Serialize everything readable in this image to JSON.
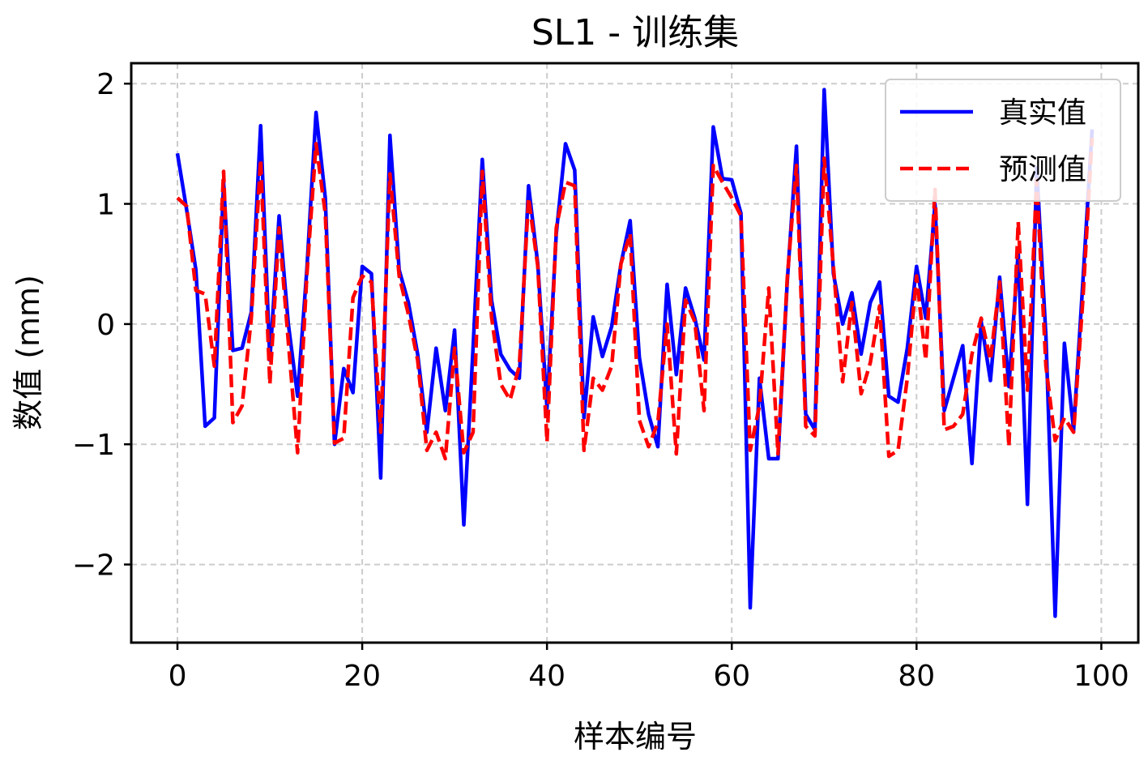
{
  "chart_data": {
    "type": "line",
    "title": "SL1 - 训练集",
    "xlabel": "样本编号",
    "ylabel": "数值 (mm)",
    "xlim": [
      -5,
      104
    ],
    "ylim": [
      -2.65,
      2.17
    ],
    "xticks": [
      0,
      20,
      40,
      60,
      80,
      100
    ],
    "xtick_labels": [
      "0",
      "20",
      "40",
      "60",
      "80",
      "100"
    ],
    "yticks": [
      -2,
      -1,
      0,
      1,
      2
    ],
    "ytick_labels": [
      "−2",
      "−1",
      "0",
      "1",
      "2"
    ],
    "grid": true,
    "legend_position": "top-right",
    "series": [
      {
        "name": "真实值",
        "color": "#0000ff",
        "style": "solid",
        "x": [
          0,
          1,
          2,
          3,
          4,
          5,
          6,
          7,
          8,
          9,
          10,
          11,
          12,
          13,
          14,
          15,
          16,
          17,
          18,
          19,
          20,
          21,
          22,
          23,
          24,
          25,
          26,
          27,
          28,
          29,
          30,
          31,
          32,
          33,
          34,
          35,
          36,
          37,
          38,
          39,
          40,
          41,
          42,
          43,
          44,
          45,
          46,
          47,
          48,
          49,
          50,
          51,
          52,
          53,
          54,
          55,
          56,
          57,
          58,
          59,
          60,
          61,
          62,
          63,
          64,
          65,
          66,
          67,
          68,
          69,
          70,
          71,
          72,
          73,
          74,
          75,
          76,
          77,
          78,
          79,
          80,
          81,
          82,
          83,
          84,
          85,
          86,
          87,
          88,
          89,
          90,
          91,
          92,
          93,
          94,
          95,
          96,
          97,
          98,
          99
        ],
        "values": [
          1.42,
          0.95,
          0.45,
          -0.85,
          -0.78,
          1.18,
          -0.22,
          -0.2,
          0.1,
          1.65,
          -0.3,
          0.9,
          0.0,
          -0.6,
          0.45,
          1.76,
          1.05,
          -1.0,
          -0.37,
          -0.57,
          0.48,
          0.42,
          -1.28,
          1.57,
          0.45,
          0.18,
          -0.25,
          -0.9,
          -0.2,
          -0.72,
          -0.05,
          -1.67,
          -0.2,
          1.37,
          0.2,
          -0.25,
          -0.38,
          -0.45,
          1.15,
          0.5,
          -0.7,
          0.75,
          1.5,
          1.28,
          -0.78,
          0.06,
          -0.27,
          -0.02,
          0.5,
          0.86,
          -0.28,
          -0.75,
          -1.02,
          0.33,
          -0.42,
          0.3,
          0.05,
          -0.3,
          1.64,
          1.21,
          1.2,
          0.92,
          -2.36,
          -0.45,
          -1.12,
          -1.12,
          0.35,
          1.48,
          -0.75,
          -0.88,
          1.95,
          0.42,
          0.0,
          0.26,
          -0.25,
          0.18,
          0.35,
          -0.6,
          -0.65,
          -0.2,
          0.48,
          0.05,
          1.0,
          -0.72,
          -0.45,
          -0.18,
          -1.16,
          0.02,
          -0.47,
          0.39,
          -0.52,
          0.6,
          -1.5,
          1.3,
          -0.1,
          -2.43,
          -0.16,
          -0.88,
          0.35,
          1.62
        ]
      },
      {
        "name": "预测值",
        "color": "#ff0000",
        "style": "dashed",
        "x": [
          0,
          1,
          2,
          3,
          4,
          5,
          6,
          7,
          8,
          9,
          10,
          11,
          12,
          13,
          14,
          15,
          16,
          17,
          18,
          19,
          20,
          21,
          22,
          23,
          24,
          25,
          26,
          27,
          28,
          29,
          30,
          31,
          32,
          33,
          34,
          35,
          36,
          37,
          38,
          39,
          40,
          41,
          42,
          43,
          44,
          45,
          46,
          47,
          48,
          49,
          50,
          51,
          52,
          53,
          54,
          55,
          56,
          57,
          58,
          59,
          60,
          61,
          62,
          63,
          64,
          65,
          66,
          67,
          68,
          69,
          70,
          71,
          72,
          73,
          74,
          75,
          76,
          77,
          78,
          79,
          80,
          81,
          82,
          83,
          84,
          85,
          86,
          87,
          88,
          89,
          90,
          91,
          92,
          93,
          94,
          95,
          96,
          97,
          98,
          99
        ],
        "values": [
          1.05,
          0.98,
          0.28,
          0.25,
          -0.35,
          1.27,
          -0.82,
          -0.68,
          0.05,
          1.37,
          -0.5,
          0.8,
          -0.15,
          -1.07,
          0.4,
          1.5,
          0.92,
          -0.99,
          -0.95,
          0.22,
          0.4,
          0.35,
          -0.9,
          1.25,
          0.4,
          0.08,
          -0.3,
          -1.05,
          -0.9,
          -1.12,
          -0.2,
          -1.07,
          -0.9,
          1.27,
          0.06,
          -0.5,
          -0.63,
          -0.35,
          1.05,
          0.48,
          -0.98,
          0.8,
          1.18,
          1.15,
          -1.05,
          -0.45,
          -0.55,
          -0.35,
          0.5,
          0.75,
          -0.8,
          -1.02,
          -0.82,
          0.0,
          -1.08,
          0.2,
          0.02,
          -0.72,
          1.32,
          1.18,
          1.05,
          0.9,
          -1.05,
          -0.68,
          0.3,
          -1.08,
          0.38,
          1.32,
          -0.85,
          -0.93,
          1.38,
          0.48,
          -0.48,
          0.18,
          -0.58,
          -0.32,
          0.15,
          -1.1,
          -1.05,
          -0.45,
          0.4,
          -0.3,
          1.12,
          -0.88,
          -0.85,
          -0.75,
          -0.25,
          0.05,
          -0.3,
          0.35,
          -1.02,
          0.85,
          -0.55,
          1.2,
          -0.35,
          -0.97,
          -0.78,
          -0.9,
          0.2,
          1.55
        ]
      }
    ]
  }
}
